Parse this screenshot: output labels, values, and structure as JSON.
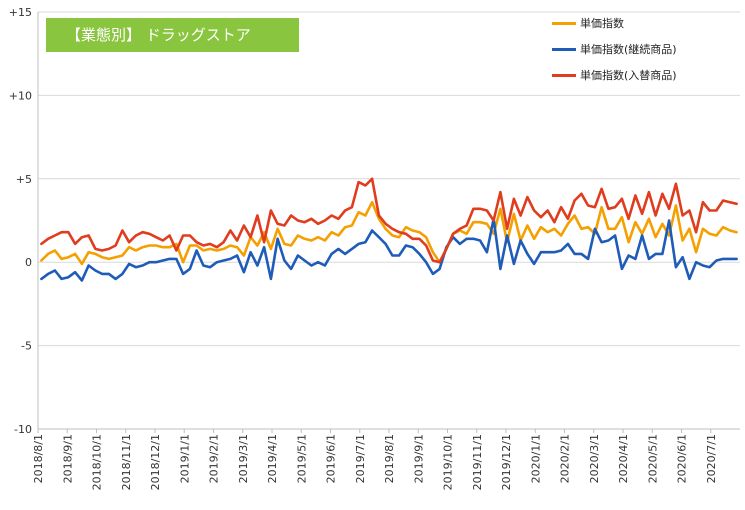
{
  "chart_data": {
    "type": "line",
    "title": "【業態別】 ドラッグストア",
    "xlabel": "",
    "ylabel": "",
    "ylim": [
      -10,
      15
    ],
    "yticks": [
      {
        "value": 15,
        "label": "+15"
      },
      {
        "value": 10,
        "label": "+10"
      },
      {
        "value": 5,
        "label": "+5"
      },
      {
        "value": 0,
        "label": "0"
      },
      {
        "value": -5,
        "label": "-5"
      },
      {
        "value": -10,
        "label": "-10"
      }
    ],
    "xtick_labels": [
      "2018/8/1",
      "2018/9/1",
      "2018/10/1",
      "2018/11/1",
      "2018/12/1",
      "2019/1/1",
      "2019/2/1",
      "2019/3/1",
      "2019/4/1",
      "2019/5/1",
      "2019/6/1",
      "2019/7/1",
      "2019/8/1",
      "2019/9/1",
      "2019/10/1",
      "2019/11/1",
      "2019/12/1",
      "2020/1/1",
      "2020/2/1",
      "2020/3/1",
      "2020/4/1",
      "2020/5/1",
      "2020/6/1",
      "2020/7/1"
    ],
    "grid": true,
    "legend_position": "top-right",
    "frequency": "weekly",
    "x_start": "2018/8/1",
    "x_end": "2020/7/31",
    "series": [
      {
        "name": "単価指数",
        "color": "#f5a000",
        "values": [
          0.1,
          0.5,
          0.7,
          0.2,
          0.3,
          0.5,
          -0.1,
          0.6,
          0.5,
          0.3,
          0.2,
          0.3,
          0.4,
          0.9,
          0.7,
          0.9,
          1.0,
          1.0,
          0.9,
          0.9,
          1.1,
          0.0,
          1.0,
          1.0,
          0.7,
          0.8,
          0.7,
          0.8,
          1.0,
          0.9,
          0.4,
          1.5,
          1.0,
          1.8,
          0.8,
          2.0,
          1.1,
          1.0,
          1.6,
          1.4,
          1.3,
          1.5,
          1.3,
          1.8,
          1.6,
          2.1,
          2.2,
          3.0,
          2.8,
          3.6,
          2.6,
          2.0,
          1.6,
          1.5,
          2.1,
          1.9,
          1.8,
          1.5,
          0.6,
          0.0,
          0.8,
          1.7,
          1.9,
          1.7,
          2.4,
          2.4,
          2.3,
          1.7,
          3.2,
          1.2,
          2.9,
          1.3,
          2.2,
          1.4,
          2.1,
          1.8,
          2.0,
          1.6,
          2.3,
          2.8,
          2.0,
          2.1,
          1.7,
          3.3,
          2.0,
          2.0,
          2.7,
          1.2,
          2.4,
          1.7,
          2.6,
          1.5,
          2.3,
          1.6,
          3.4,
          1.3,
          2.0,
          0.6,
          2.0,
          1.7,
          1.6,
          2.1,
          1.9,
          1.8
        ]
      },
      {
        "name": "単価指数(継続商品)",
        "color": "#1e5cb8",
        "values": [
          -1.0,
          -0.7,
          -0.5,
          -1.0,
          -0.9,
          -0.6,
          -1.1,
          -0.2,
          -0.5,
          -0.7,
          -0.7,
          -1.0,
          -0.7,
          -0.1,
          -0.3,
          -0.2,
          0.0,
          0.0,
          0.1,
          0.2,
          0.2,
          -0.7,
          -0.4,
          0.7,
          -0.2,
          -0.3,
          0.0,
          0.1,
          0.2,
          0.4,
          -0.6,
          0.6,
          -0.2,
          0.9,
          -1.0,
          1.4,
          0.1,
          -0.4,
          0.4,
          0.1,
          -0.2,
          0.0,
          -0.2,
          0.5,
          0.8,
          0.5,
          0.8,
          1.1,
          1.2,
          1.9,
          1.5,
          1.1,
          0.4,
          0.4,
          1.0,
          0.9,
          0.5,
          0.0,
          -0.7,
          -0.4,
          0.9,
          1.5,
          1.1,
          1.4,
          1.4,
          1.3,
          0.6,
          2.6,
          -0.4,
          1.6,
          -0.1,
          1.3,
          0.5,
          -0.1,
          0.6,
          0.6,
          0.6,
          0.7,
          1.1,
          0.5,
          0.5,
          0.2,
          2.0,
          1.2,
          1.3,
          1.6,
          -0.4,
          0.4,
          0.2,
          1.6,
          0.2,
          0.5,
          0.5,
          2.5,
          -0.3,
          0.3,
          -1.0,
          0.0,
          -0.2,
          -0.3,
          0.1,
          0.2,
          0.2,
          0.2
        ]
      },
      {
        "name": "単価指数(入替商品)",
        "color": "#e03c1e",
        "values": [
          1.1,
          1.4,
          1.6,
          1.8,
          1.8,
          1.1,
          1.5,
          1.6,
          0.8,
          0.7,
          0.8,
          1.0,
          1.9,
          1.2,
          1.6,
          1.8,
          1.7,
          1.5,
          1.3,
          1.6,
          0.7,
          1.6,
          1.6,
          1.2,
          1.0,
          1.1,
          0.9,
          1.2,
          1.9,
          1.3,
          2.2,
          1.5,
          2.8,
          1.2,
          3.1,
          2.3,
          2.2,
          2.8,
          2.5,
          2.4,
          2.6,
          2.3,
          2.5,
          2.8,
          2.6,
          3.1,
          3.3,
          4.8,
          4.6,
          5.0,
          2.8,
          2.3,
          2.0,
          1.8,
          1.7,
          1.4,
          1.4,
          1.0,
          0.1,
          0.0,
          0.8,
          1.7,
          2.0,
          2.2,
          3.2,
          3.2,
          3.1,
          2.5,
          4.2,
          2.0,
          3.8,
          2.8,
          3.9,
          3.1,
          2.7,
          3.1,
          2.4,
          3.3,
          2.6,
          3.7,
          4.1,
          3.4,
          3.3,
          4.4,
          3.2,
          3.3,
          3.8,
          2.6,
          4.0,
          2.9,
          4.2,
          2.8,
          4.1,
          3.2,
          4.7,
          2.8,
          3.1,
          1.8,
          3.6,
          3.1,
          3.1,
          3.7,
          3.6,
          3.5
        ]
      }
    ]
  }
}
